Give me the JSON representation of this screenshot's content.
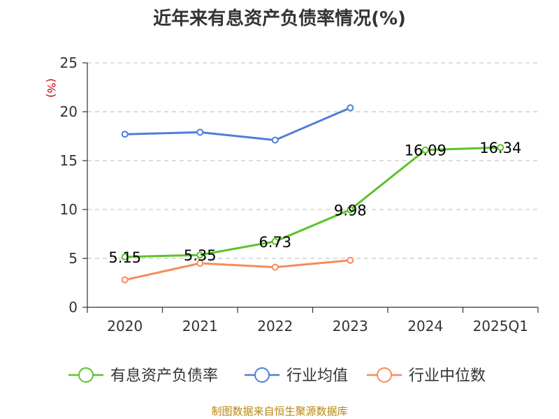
{
  "chart_data": {
    "type": "line",
    "title": "近年来有息资产负债率情况(%)",
    "ylabel": "(%)",
    "xlabel": "",
    "ylim": [
      0,
      25
    ],
    "yticks": [
      0,
      5,
      10,
      15,
      20,
      25
    ],
    "categories": [
      "2020",
      "2021",
      "2022",
      "2023",
      "2024",
      "2025Q1"
    ],
    "series": [
      {
        "name": "有息资产负债率",
        "color": "#5cc22a",
        "values": [
          5.15,
          5.35,
          6.73,
          9.98,
          16.09,
          16.34
        ],
        "labels": [
          "5.15",
          "5.35",
          "6.73",
          "9.98",
          "16.09",
          "16.34"
        ]
      },
      {
        "name": "行业均值",
        "color": "#4f7fd6",
        "values": [
          17.7,
          17.9,
          17.1,
          20.4,
          null,
          null
        ]
      },
      {
        "name": "行业中位数",
        "color": "#f58b5b",
        "values": [
          2.8,
          4.5,
          4.1,
          4.8,
          null,
          null
        ]
      }
    ],
    "grid": true,
    "legend_position": "bottom"
  },
  "footer": "制图数据来自恒生聚源数据库"
}
